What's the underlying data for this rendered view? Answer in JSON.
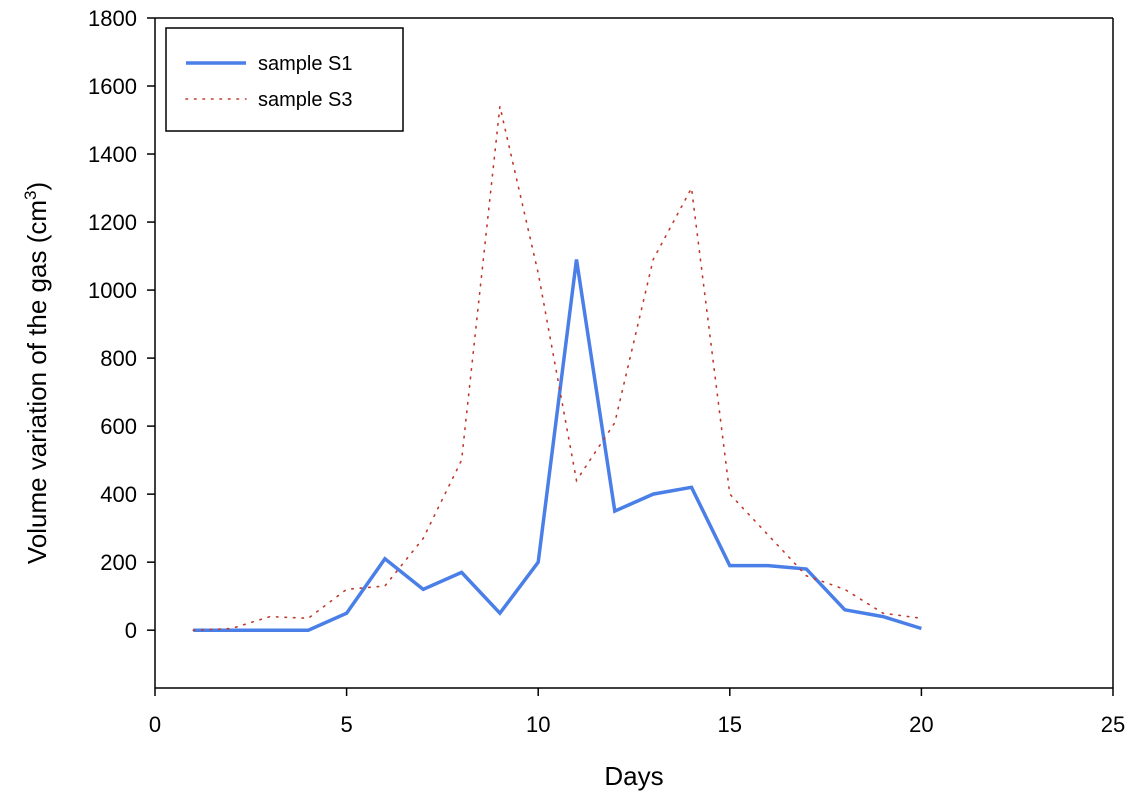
{
  "chart_data": {
    "type": "line",
    "xlabel": "Days",
    "ylabel": {
      "text": "Volume variation of the gas (cm",
      "superscript": "3",
      "suffix": ")"
    },
    "xlim": [
      0,
      25
    ],
    "ylim": [
      -170,
      1800
    ],
    "x_ticks": [
      0,
      5,
      10,
      15,
      20,
      25
    ],
    "y_ticks": [
      0,
      200,
      400,
      600,
      800,
      1000,
      1200,
      1400,
      1600,
      1800
    ],
    "grid": false,
    "legend_position": "top-left",
    "series": [
      {
        "name": "sample S1",
        "style": "solid",
        "color": "#4a7fe8",
        "x": [
          1,
          2,
          3,
          4,
          5,
          6,
          7,
          8,
          9,
          10,
          11,
          12,
          13,
          14,
          15,
          16,
          17,
          18,
          19,
          20
        ],
        "y": [
          0,
          0,
          0,
          0,
          50,
          210,
          120,
          170,
          50,
          200,
          1090,
          350,
          400,
          420,
          190,
          190,
          180,
          60,
          40,
          5
        ]
      },
      {
        "name": "sample S3",
        "style": "dotted",
        "color": "#c0392b",
        "x": [
          1,
          2,
          3,
          4,
          5,
          6,
          7,
          8,
          9,
          10,
          11,
          12,
          13,
          14,
          15,
          16,
          17,
          18,
          19,
          20
        ],
        "y": [
          0,
          5,
          40,
          35,
          120,
          130,
          270,
          500,
          1540,
          1050,
          440,
          610,
          1090,
          1300,
          400,
          280,
          160,
          120,
          50,
          35
        ]
      }
    ]
  }
}
